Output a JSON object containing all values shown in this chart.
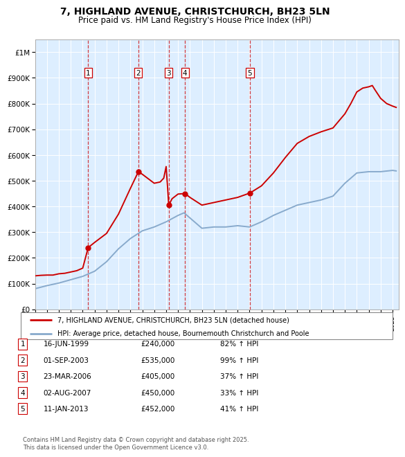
{
  "title": "7, HIGHLAND AVENUE, CHRISTCHURCH, BH23 5LN",
  "subtitle": "Price paid vs. HM Land Registry's House Price Index (HPI)",
  "footer": "Contains HM Land Registry data © Crown copyright and database right 2025.\nThis data is licensed under the Open Government Licence v3.0.",
  "legend_line1": "7, HIGHLAND AVENUE, CHRISTCHURCH, BH23 5LN (detached house)",
  "legend_line2": "HPI: Average price, detached house, Bournemouth Christchurch and Poole",
  "red_color": "#cc0000",
  "blue_color": "#88aacc",
  "background_color": "#ddeeff",
  "transactions": [
    {
      "num": 1,
      "date": "16-JUN-1999",
      "price": 240000,
      "pct": "82% ↑ HPI",
      "year": 1999.46
    },
    {
      "num": 2,
      "date": "01-SEP-2003",
      "price": 535000,
      "pct": "99% ↑ HPI",
      "year": 2003.67
    },
    {
      "num": 3,
      "date": "23-MAR-2006",
      "price": 405000,
      "pct": "37% ↑ HPI",
      "year": 2006.22
    },
    {
      "num": 4,
      "date": "02-AUG-2007",
      "price": 450000,
      "pct": "33% ↑ HPI",
      "year": 2007.58
    },
    {
      "num": 5,
      "date": "11-JAN-2013",
      "price": 452000,
      "pct": "41% ↑ HPI",
      "year": 2013.03
    }
  ],
  "ylim": [
    0,
    1050000
  ],
  "xlim_start": 1995,
  "xlim_end": 2025.5,
  "hpi_points": [
    [
      1995.0,
      80000
    ],
    [
      1996.0,
      92000
    ],
    [
      1997.0,
      102000
    ],
    [
      1998.0,
      115000
    ],
    [
      1999.0,
      128000
    ],
    [
      2000.0,
      148000
    ],
    [
      2001.0,
      185000
    ],
    [
      2002.0,
      235000
    ],
    [
      2003.0,
      275000
    ],
    [
      2004.0,
      305000
    ],
    [
      2005.0,
      320000
    ],
    [
      2006.0,
      340000
    ],
    [
      2007.0,
      365000
    ],
    [
      2007.5,
      375000
    ],
    [
      2008.0,
      355000
    ],
    [
      2009.0,
      315000
    ],
    [
      2010.0,
      320000
    ],
    [
      2011.0,
      320000
    ],
    [
      2012.0,
      325000
    ],
    [
      2013.0,
      320000
    ],
    [
      2014.0,
      340000
    ],
    [
      2015.0,
      365000
    ],
    [
      2016.0,
      385000
    ],
    [
      2017.0,
      405000
    ],
    [
      2018.0,
      415000
    ],
    [
      2019.0,
      425000
    ],
    [
      2020.0,
      440000
    ],
    [
      2021.0,
      490000
    ],
    [
      2022.0,
      530000
    ],
    [
      2023.0,
      535000
    ],
    [
      2024.0,
      535000
    ],
    [
      2025.0,
      540000
    ],
    [
      2025.3,
      538000
    ]
  ],
  "red_points": [
    [
      1995.0,
      130000
    ],
    [
      1995.5,
      132000
    ],
    [
      1996.0,
      133000
    ],
    [
      1996.5,
      133000
    ],
    [
      1997.0,
      138000
    ],
    [
      1997.5,
      140000
    ],
    [
      1998.0,
      145000
    ],
    [
      1998.5,
      150000
    ],
    [
      1999.0,
      160000
    ],
    [
      1999.46,
      240000
    ],
    [
      2000.0,
      260000
    ],
    [
      2001.0,
      295000
    ],
    [
      2002.0,
      370000
    ],
    [
      2003.0,
      470000
    ],
    [
      2003.67,
      535000
    ],
    [
      2004.0,
      525000
    ],
    [
      2005.0,
      490000
    ],
    [
      2005.5,
      495000
    ],
    [
      2005.8,
      510000
    ],
    [
      2006.0,
      555000
    ],
    [
      2006.22,
      405000
    ],
    [
      2006.5,
      430000
    ],
    [
      2007.0,
      448000
    ],
    [
      2007.58,
      450000
    ],
    [
      2008.0,
      435000
    ],
    [
      2009.0,
      405000
    ],
    [
      2010.0,
      415000
    ],
    [
      2011.0,
      425000
    ],
    [
      2012.0,
      435000
    ],
    [
      2013.03,
      452000
    ],
    [
      2014.0,
      480000
    ],
    [
      2015.0,
      530000
    ],
    [
      2016.0,
      590000
    ],
    [
      2017.0,
      645000
    ],
    [
      2018.0,
      672000
    ],
    [
      2019.0,
      690000
    ],
    [
      2020.0,
      705000
    ],
    [
      2021.0,
      760000
    ],
    [
      2021.5,
      800000
    ],
    [
      2022.0,
      845000
    ],
    [
      2022.5,
      860000
    ],
    [
      2023.0,
      865000
    ],
    [
      2023.3,
      870000
    ],
    [
      2023.5,
      855000
    ],
    [
      2024.0,
      820000
    ],
    [
      2024.5,
      800000
    ],
    [
      2025.0,
      790000
    ],
    [
      2025.3,
      785000
    ]
  ]
}
